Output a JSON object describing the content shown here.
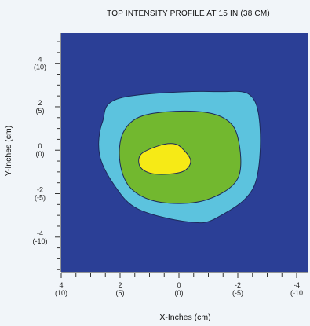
{
  "chart_data": {
    "type": "heatmap",
    "title": "TOP INTENSITY PROFILE AT 15 IN (38 CM)",
    "xlabel": "X-Inches (cm)",
    "ylabel": "Y-Inches (cm)",
    "xlim": [
      4,
      -4.4
    ],
    "ylim": [
      -5.6,
      5.4
    ],
    "x_ticks": [
      {
        "value": 4,
        "inch": "4",
        "cm": "(10)"
      },
      {
        "value": 2,
        "inch": "2",
        "cm": "(5)"
      },
      {
        "value": 0,
        "inch": "0",
        "cm": "(0)"
      },
      {
        "value": -2,
        "inch": "-2",
        "cm": "(-5)"
      },
      {
        "value": -4,
        "inch": "-4",
        "cm": "(-10"
      }
    ],
    "y_ticks": [
      {
        "value": 4,
        "inch": "4",
        "cm": "(10)"
      },
      {
        "value": 2,
        "inch": "2",
        "cm": "(5)"
      },
      {
        "value": 0,
        "inch": "0",
        "cm": "(0)"
      },
      {
        "value": -2,
        "inch": "-2",
        "cm": "(-5)"
      },
      {
        "value": -4,
        "inch": "-4",
        "cm": "(-10)"
      }
    ],
    "background_color": "#2b3f96",
    "contours": [
      {
        "level": "outer",
        "fill": "#5cc3de",
        "points": [
          [
            2.0,
            2.4
          ],
          [
            -1.2,
            2.7
          ],
          [
            -2.6,
            2.2
          ],
          [
            -2.6,
            -1.5
          ],
          [
            -1.3,
            -3.1
          ],
          [
            -0.3,
            -3.3
          ],
          [
            1.4,
            -2.7
          ],
          [
            2.2,
            -1.6
          ],
          [
            2.7,
            -0.2
          ],
          [
            2.6,
            1.3
          ]
        ]
      },
      {
        "level": "middle",
        "fill": "#72b82f",
        "points": [
          [
            1.2,
            1.6
          ],
          [
            -0.4,
            1.8
          ],
          [
            -1.5,
            1.5
          ],
          [
            -2.0,
            0.6
          ],
          [
            -2.0,
            -1.3
          ],
          [
            -0.9,
            -2.3
          ],
          [
            0.6,
            -2.4
          ],
          [
            1.6,
            -1.8
          ],
          [
            2.0,
            -0.6
          ],
          [
            1.9,
            0.8
          ]
        ]
      },
      {
        "level": "inner",
        "fill": "#f6ea16",
        "points": [
          [
            0.7,
            0.2
          ],
          [
            0.2,
            0.3
          ],
          [
            -0.1,
            0.1
          ],
          [
            -0.4,
            -0.5
          ],
          [
            -0.1,
            -1.0
          ],
          [
            0.8,
            -1.1
          ],
          [
            1.3,
            -0.8
          ],
          [
            1.3,
            -0.2
          ]
        ]
      }
    ]
  }
}
